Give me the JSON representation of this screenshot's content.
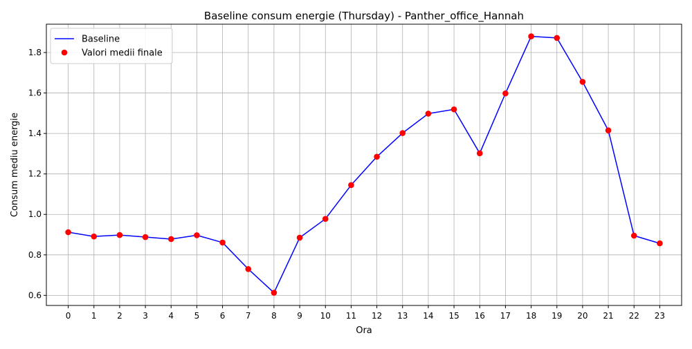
{
  "chart_data": {
    "type": "line",
    "title": "Baseline consum energie (Thursday) - Panther_office_Hannah",
    "xlabel": "Ora",
    "ylabel": "Consum mediu energie",
    "x": [
      0,
      1,
      2,
      3,
      4,
      5,
      6,
      7,
      8,
      9,
      10,
      11,
      12,
      13,
      14,
      15,
      16,
      17,
      18,
      19,
      20,
      21,
      22,
      23
    ],
    "x_tick_labels": [
      "0",
      "1",
      "2",
      "3",
      "4",
      "5",
      "6",
      "7",
      "8",
      "9",
      "10",
      "11",
      "12",
      "13",
      "14",
      "15",
      "16",
      "17",
      "18",
      "19",
      "20",
      "21",
      "22",
      "23"
    ],
    "y_ticks": [
      0.6,
      0.8,
      1.0,
      1.2,
      1.4,
      1.6,
      1.8
    ],
    "y_tick_labels": [
      "0.6",
      "0.8",
      "1.0",
      "1.2",
      "1.4",
      "1.6",
      "1.8"
    ],
    "xlim": [
      -0.85,
      23.85
    ],
    "ylim": [
      0.55,
      1.94
    ],
    "grid": true,
    "legend_position": "upper-left",
    "series": [
      {
        "name": "Baseline",
        "kind": "line",
        "color": "#0000ff",
        "values": [
          0.912,
          0.891,
          0.898,
          0.888,
          0.878,
          0.897,
          0.861,
          0.73,
          0.613,
          0.885,
          0.978,
          1.145,
          1.285,
          1.402,
          1.498,
          1.519,
          1.302,
          1.598,
          1.88,
          1.872,
          1.655,
          1.415,
          0.895,
          0.857
        ]
      },
      {
        "name": "Valori medii finale",
        "kind": "scatter",
        "color": "#ff0000",
        "values": [
          0.912,
          0.891,
          0.898,
          0.888,
          0.878,
          0.897,
          0.861,
          0.73,
          0.613,
          0.885,
          0.978,
          1.145,
          1.285,
          1.402,
          1.498,
          1.519,
          1.302,
          1.598,
          1.88,
          1.872,
          1.655,
          1.415,
          0.895,
          0.857
        ]
      }
    ]
  }
}
